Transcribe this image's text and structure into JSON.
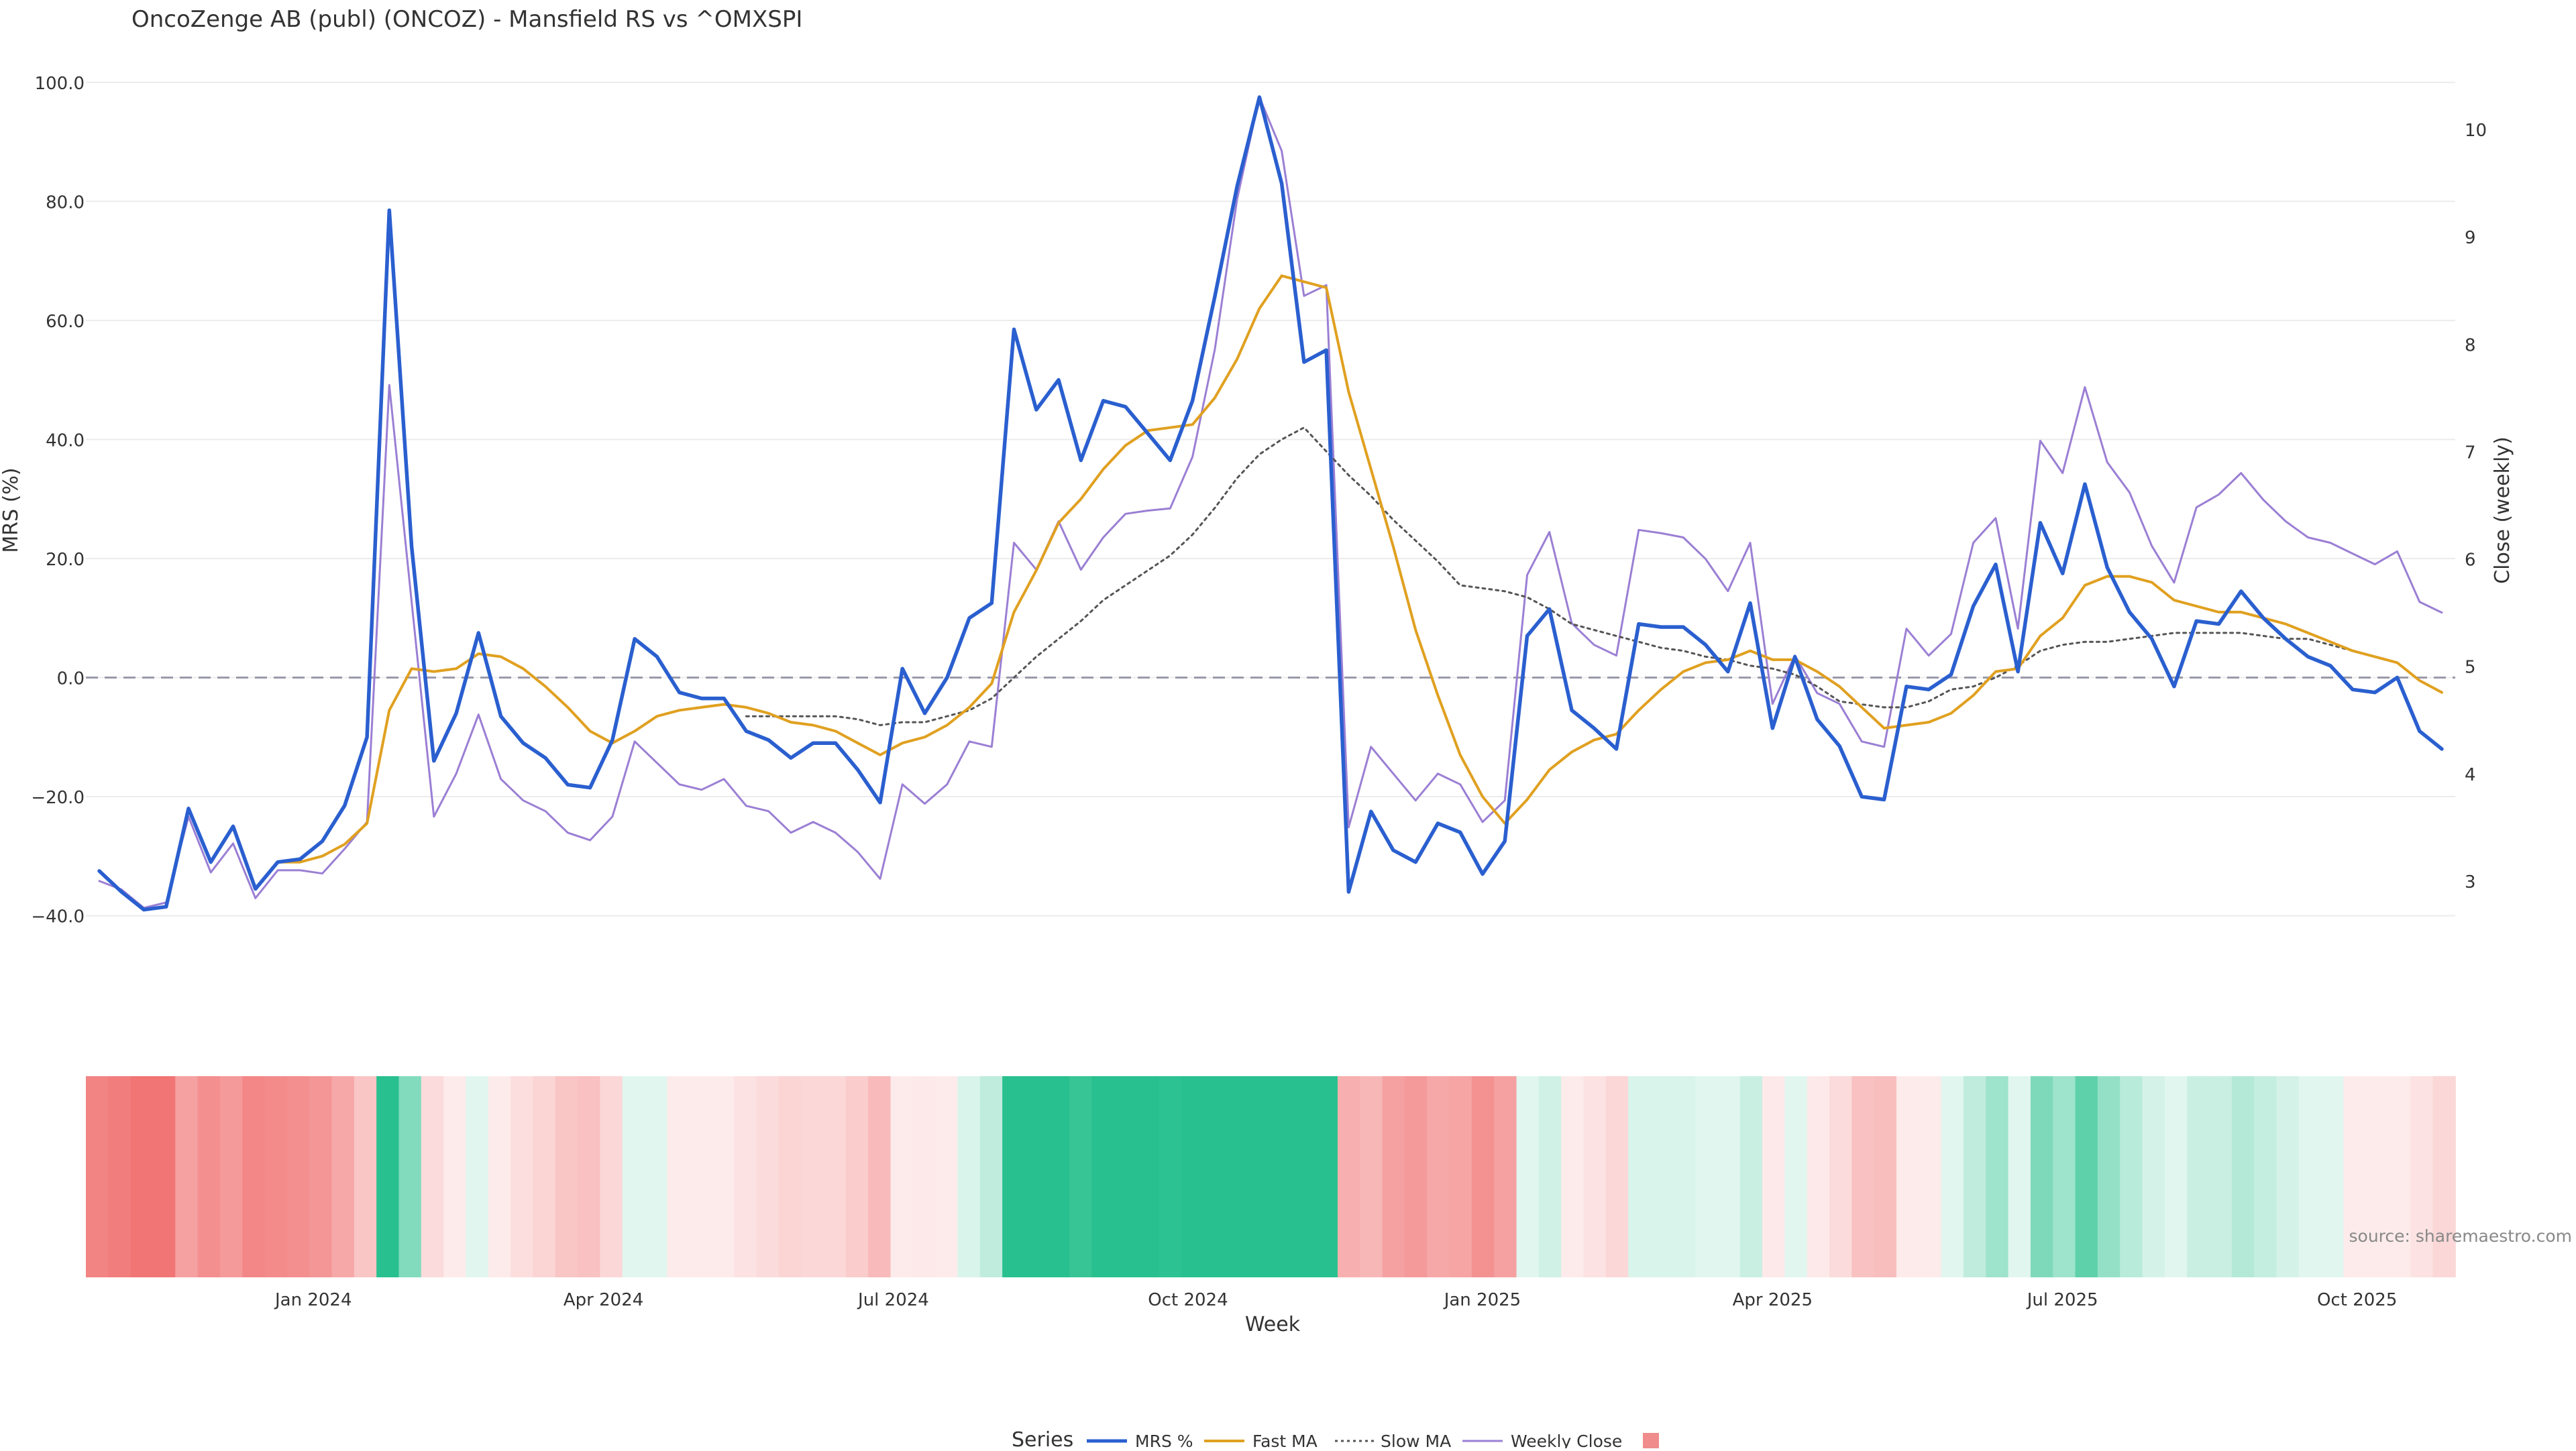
{
  "chart_data": {
    "type": "line",
    "title": "OncoZenge AB (publ) (ONCOZ) - Mansfield RS vs ^OMXSPI",
    "xlabel": "Week",
    "ylabel": "MRS (%)",
    "y2label": "Close (weekly)",
    "ylim": [
      -45,
      102
    ],
    "y2lim": [
      2.4,
      10.55
    ],
    "yticks": [
      -40,
      -20,
      0,
      20,
      40,
      60,
      80,
      100
    ],
    "yticklabels": [
      "−40.0",
      "−20.0",
      "0.0",
      "20.0",
      "40.0",
      "60.0",
      "80.0",
      "100.0"
    ],
    "y2ticks": [
      3,
      4,
      5,
      6,
      7,
      8,
      9,
      10
    ],
    "y2ticklabels": [
      "3",
      "4",
      "5",
      "6",
      "7",
      "8",
      "9",
      "10"
    ],
    "xticks": [
      9.6,
      22.6,
      35.6,
      48.8,
      62.0,
      75.0,
      88.0,
      101.2
    ],
    "xticklabels": [
      "Jan 2024",
      "Apr 2024",
      "Jul 2024",
      "Oct 2024",
      "Jan 2025",
      "Apr 2025",
      "Jul 2025",
      "Oct 2025"
    ],
    "xrange": [
      -0.6,
      105.6
    ],
    "zero_line": true,
    "grid": true,
    "legend_title": "Series",
    "legend_position": "bottom",
    "source_text": "source: sharemaestro.com",
    "series": [
      {
        "name": "MRS %",
        "color": "#2a5fcf",
        "axis": "left",
        "style": "solid",
        "values": [
          -32.5,
          -36,
          -39,
          -38.5,
          -22,
          -31,
          -25,
          -35.5,
          -31,
          -30.5,
          -27.5,
          -21.5,
          -10,
          78.5,
          22,
          -14,
          -6,
          7.5,
          -6.5,
          -11,
          -13.5,
          -18,
          -18.5,
          -10.5,
          6.5,
          3.5,
          -2.5,
          -3.5,
          -3.5,
          -9,
          -10.5,
          -13.5,
          -11,
          -11,
          -15.5,
          -21,
          1.5,
          -6,
          0,
          10,
          12.5,
          58.5,
          45,
          50,
          36.5,
          46.5,
          45.5,
          41,
          36.5,
          46.5,
          64,
          82.5,
          97.5,
          83,
          53,
          55,
          -36,
          -22.5,
          -29,
          -31,
          -24.5,
          -26,
          -33,
          -27.5,
          7,
          11.5,
          -5.5,
          -8.5,
          -12,
          9,
          8.5,
          8.5,
          5.5,
          1,
          12.5,
          -8.5,
          3.5,
          -7,
          -11.5,
          -20,
          -20.5,
          -1.5,
          -2,
          0.5,
          12,
          19,
          1,
          26,
          17.5,
          32.5,
          18.5,
          11,
          6.5,
          -1.5,
          9.5,
          9,
          14.5,
          10,
          6.5,
          3.5,
          2,
          -2,
          -2.5,
          0,
          -9,
          -12
        ]
      },
      {
        "name": "Fast MA",
        "color": "#e0a020",
        "axis": "left",
        "style": "solid",
        "values": [
          null,
          null,
          null,
          null,
          null,
          null,
          null,
          null,
          -31,
          -31,
          -30,
          -28,
          -24.5,
          -5.5,
          1.5,
          1,
          1.5,
          4,
          3.5,
          1.5,
          -1.5,
          -5,
          -9,
          -11,
          -9,
          -6.5,
          -5.5,
          -5,
          -4.5,
          -5,
          -6,
          -7.5,
          -8,
          -9,
          -11,
          -13,
          -11,
          -10,
          -8,
          -5,
          -1,
          11,
          18,
          26,
          30,
          35,
          39,
          41.5,
          42,
          42.5,
          47,
          53.5,
          62,
          67.5,
          66.5,
          65.5,
          48,
          35,
          22,
          8,
          -3,
          -13,
          -20,
          -24.5,
          -20.5,
          -15.5,
          -12.5,
          -10.5,
          -9.5,
          -5.5,
          -2,
          1,
          2.5,
          3,
          4.5,
          3,
          3,
          1,
          -1.5,
          -5,
          -8.5,
          -8,
          -7.5,
          -6,
          -3,
          1,
          1.5,
          7,
          10,
          15.5,
          17,
          17,
          16,
          13,
          12,
          11,
          11,
          10,
          9,
          7.5,
          6,
          4.5,
          3.5,
          2.5,
          -0.5,
          -2.5
        ]
      },
      {
        "name": "Slow MA",
        "color": "#555555",
        "axis": "left",
        "style": "dotted",
        "values": [
          null,
          null,
          null,
          null,
          null,
          null,
          null,
          null,
          null,
          null,
          null,
          null,
          null,
          null,
          null,
          null,
          null,
          null,
          null,
          null,
          null,
          null,
          null,
          null,
          null,
          null,
          null,
          null,
          null,
          -6.5,
          -6.5,
          -6.5,
          -6.5,
          -6.5,
          -7,
          -8,
          -7.5,
          -7.5,
          -6.5,
          -5.5,
          -3.5,
          0,
          3.5,
          6.5,
          9.5,
          13,
          15.5,
          18,
          20.5,
          24,
          28.5,
          33.5,
          37.5,
          40,
          42,
          38,
          34,
          30.5,
          26.5,
          23,
          19.5,
          15.5,
          15,
          14.5,
          13.5,
          11.5,
          9,
          8,
          7,
          6,
          5,
          4.5,
          3.5,
          3,
          2,
          1.5,
          0.5,
          -1.5,
          -4,
          -4.5,
          -5,
          -5,
          -4,
          -2,
          -1.5,
          0,
          2,
          4.5,
          5.5,
          6,
          6,
          6.5,
          7,
          7.5,
          7.5,
          7.5,
          7.5,
          7,
          6.5,
          6.5,
          5.5,
          4.5
        ]
      },
      {
        "name": "Weekly Close",
        "color": "#9b7fd4",
        "axis": "right",
        "style": "solid",
        "values": [
          3.0,
          2.92,
          2.75,
          2.8,
          3.6,
          3.08,
          3.35,
          2.84,
          3.1,
          3.1,
          3.07,
          3.3,
          3.55,
          7.62,
          5.6,
          3.6,
          4.0,
          4.55,
          3.95,
          3.75,
          3.65,
          3.45,
          3.38,
          3.6,
          4.3,
          4.1,
          3.9,
          3.85,
          3.95,
          3.7,
          3.65,
          3.45,
          3.55,
          3.45,
          3.27,
          3.02,
          3.9,
          3.72,
          3.9,
          4.3,
          4.25,
          6.15,
          5.9,
          6.35,
          5.9,
          6.2,
          6.42,
          6.45,
          6.47,
          6.95,
          7.95,
          9.35,
          10.3,
          9.8,
          8.45,
          8.55,
          3.5,
          4.25,
          4.0,
          3.75,
          4.0,
          3.9,
          3.55,
          3.75,
          5.85,
          6.25,
          5.4,
          5.2,
          5.1,
          6.27,
          6.24,
          6.2,
          6.0,
          5.7,
          6.15,
          4.65,
          5.1,
          4.75,
          4.65,
          4.3,
          4.25,
          5.35,
          5.1,
          5.3,
          6.15,
          6.38,
          5.35,
          7.1,
          6.8,
          7.6,
          6.9,
          6.62,
          6.12,
          5.78,
          6.48,
          6.6,
          6.8,
          6.55,
          6.35,
          6.2,
          6.15,
          6.05,
          5.95,
          6.07,
          5.6,
          5.5
        ]
      },
      {
        "name": "",
        "color": "#f08c8c",
        "axis": "none",
        "style": "band"
      }
    ],
    "rs_band": {
      "values": [
        -34,
        -36,
        -38,
        -38,
        -26,
        -31,
        -28,
        -33,
        -32,
        -31,
        -29,
        -24,
        -16,
        68,
        23,
        -10,
        -4,
        5,
        -5,
        -9,
        -12,
        -16,
        -17,
        -11,
        4,
        2,
        -3,
        -4,
        -4,
        -8,
        -10,
        -12,
        -11,
        -11,
        -14,
        -19,
        -1,
        -6,
        -2,
        7,
        12,
        50,
        42,
        47,
        37,
        44,
        45,
        42,
        39,
        48,
        62,
        78,
        92,
        82,
        58,
        58,
        -22,
        -20,
        -26,
        -28,
        -24,
        -25,
        -30,
        -26,
        4,
        9,
        -5,
        -8,
        -11,
        7,
        7,
        7,
        5,
        2,
        10,
        -6,
        3,
        -6,
        -10,
        -17,
        -18,
        -2,
        -2,
        1,
        12,
        18,
        3,
        24,
        18,
        30,
        20,
        13,
        8,
        1,
        10,
        10,
        14,
        11,
        8,
        5,
        4,
        -3,
        -4,
        -1,
        -8,
        -11
      ]
    }
  }
}
